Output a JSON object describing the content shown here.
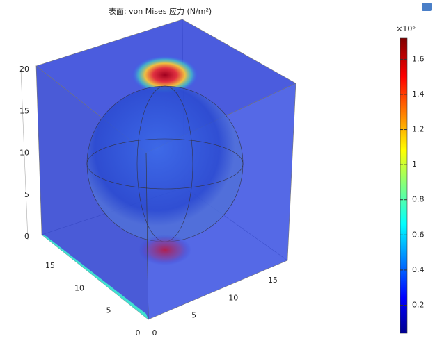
{
  "chart_data": {
    "type": "surface3d",
    "title": "表面: von Mises 应力 (N/m²)",
    "colorbar": {
      "multiplier": "×10⁶",
      "lim": [
        0.04,
        1.72
      ],
      "ticks": [
        0.2,
        0.4,
        0.6,
        0.8,
        1,
        1.2,
        1.4,
        1.6
      ]
    },
    "zticks": [
      0,
      5,
      10,
      15,
      20
    ],
    "xticks": [
      0,
      5,
      10,
      15
    ],
    "yticks": [
      0,
      5,
      10,
      15
    ]
  }
}
